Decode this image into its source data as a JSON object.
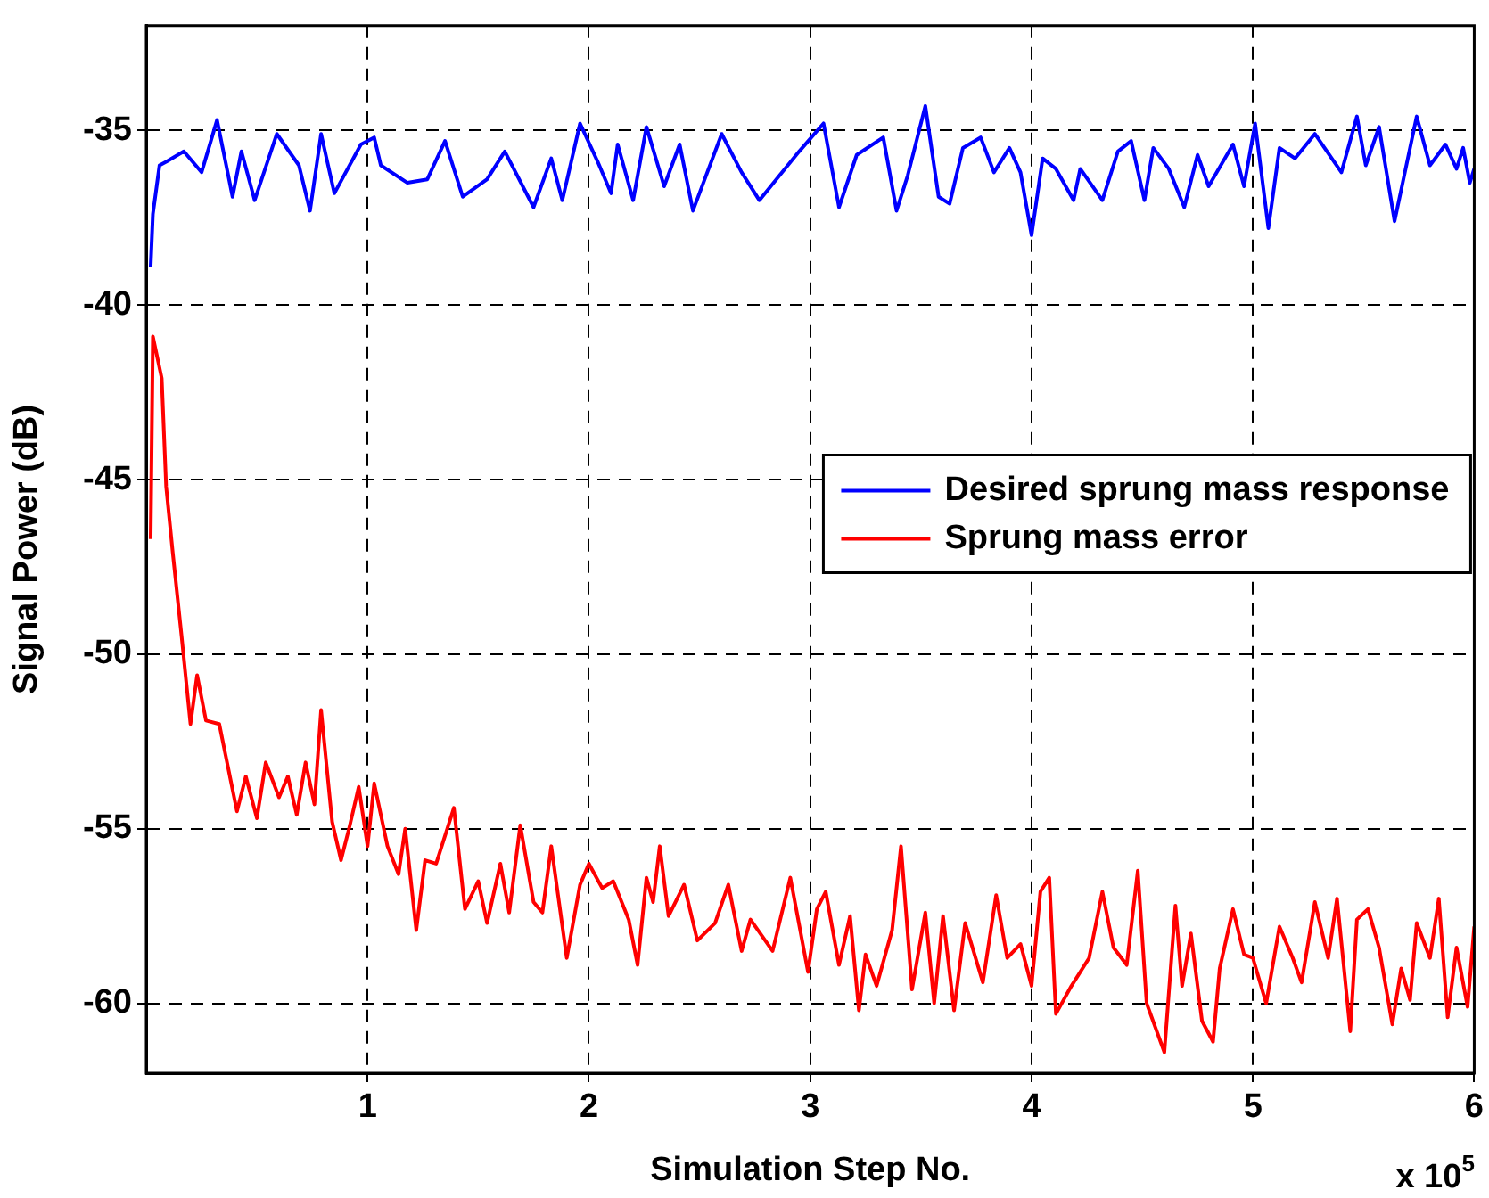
{
  "chart_data": {
    "type": "line",
    "xlabel": "Simulation Step No.",
    "ylabel": "Signal Power (dB)",
    "annotations": [
      "x 10$^{5}$"
    ],
    "xlim": [
      0,
      6
    ],
    "xticks": [
      1,
      2,
      3,
      4,
      5,
      6
    ],
    "ylim": [
      -62,
      -32
    ],
    "yticks": [
      -60,
      -55,
      -50,
      -45,
      -40,
      -35
    ],
    "grid": true,
    "legend": "right",
    "marker": "none",
    "series": [
      {
        "name": "Desired sprung mass response",
        "color": "#0000ff",
        "x": [
          0.02,
          0.03,
          0.06,
          0.09,
          0.17,
          0.25,
          0.32,
          0.39,
          0.43,
          0.49,
          0.59,
          0.69,
          0.74,
          0.79,
          0.85,
          0.97,
          1.03,
          1.06,
          1.18,
          1.27,
          1.35,
          1.43,
          1.54,
          1.62,
          1.75,
          1.83,
          1.88,
          1.96,
          2.04,
          2.1,
          2.13,
          2.2,
          2.26,
          2.34,
          2.41,
          2.47,
          2.6,
          2.69,
          2.77,
          2.95,
          3.06,
          3.13,
          3.21,
          3.33,
          3.39,
          3.44,
          3.52,
          3.58,
          3.63,
          3.69,
          3.77,
          3.83,
          3.9,
          3.95,
          4.0,
          4.05,
          4.11,
          4.19,
          4.22,
          4.32,
          4.39,
          4.45,
          4.51,
          4.55,
          4.62,
          4.69,
          4.75,
          4.8,
          4.91,
          4.96,
          5.01,
          5.07,
          5.12,
          5.19,
          5.28,
          5.4,
          5.47,
          5.51,
          5.57,
          5.64,
          5.74,
          5.8,
          5.87,
          5.92,
          5.95,
          5.98,
          6.0
        ],
        "values": [
          -38.9,
          -37.4,
          -36.0,
          -35.9,
          -35.6,
          -36.2,
          -34.7,
          -36.9,
          -35.6,
          -37.0,
          -35.1,
          -36.0,
          -37.3,
          -35.1,
          -36.8,
          -35.4,
          -35.2,
          -36.0,
          -36.5,
          -36.4,
          -35.3,
          -36.9,
          -36.4,
          -35.6,
          -37.2,
          -35.8,
          -37.0,
          -34.8,
          -35.9,
          -36.8,
          -35.4,
          -37.0,
          -34.9,
          -36.6,
          -35.4,
          -37.3,
          -35.1,
          -36.2,
          -37.0,
          -35.6,
          -34.8,
          -37.2,
          -35.7,
          -35.2,
          -37.3,
          -36.3,
          -34.3,
          -36.9,
          -37.1,
          -35.5,
          -35.2,
          -36.2,
          -35.5,
          -36.2,
          -38.0,
          -35.8,
          -36.1,
          -37.0,
          -36.1,
          -37.0,
          -35.6,
          -35.3,
          -37.0,
          -35.5,
          -36.1,
          -37.2,
          -35.7,
          -36.6,
          -35.4,
          -36.6,
          -34.8,
          -37.8,
          -35.5,
          -35.8,
          -35.1,
          -36.2,
          -34.6,
          -36.0,
          -34.9,
          -37.6,
          -34.6,
          -36.0,
          -35.4,
          -36.1,
          -35.5,
          -36.5,
          -36.1
        ]
      },
      {
        "name": "Sprung mass error",
        "color": "#ff0000",
        "x": [
          0.02,
          0.03,
          0.07,
          0.09,
          0.12,
          0.16,
          0.2,
          0.23,
          0.27,
          0.33,
          0.41,
          0.45,
          0.5,
          0.54,
          0.6,
          0.64,
          0.68,
          0.72,
          0.76,
          0.79,
          0.84,
          0.88,
          0.92,
          0.96,
          1.0,
          1.03,
          1.09,
          1.14,
          1.17,
          1.22,
          1.26,
          1.31,
          1.39,
          1.44,
          1.5,
          1.54,
          1.6,
          1.64,
          1.69,
          1.75,
          1.79,
          1.83,
          1.9,
          1.96,
          2.0,
          2.06,
          2.11,
          2.18,
          2.22,
          2.26,
          2.29,
          2.32,
          2.36,
          2.43,
          2.49,
          2.57,
          2.63,
          2.69,
          2.73,
          2.83,
          2.91,
          2.99,
          3.03,
          3.07,
          3.13,
          3.18,
          3.22,
          3.25,
          3.3,
          3.37,
          3.41,
          3.46,
          3.52,
          3.56,
          3.6,
          3.65,
          3.7,
          3.78,
          3.84,
          3.89,
          3.95,
          4.0,
          4.04,
          4.08,
          4.11,
          4.18,
          4.26,
          4.32,
          4.37,
          4.43,
          4.48,
          4.52,
          4.6,
          4.65,
          4.68,
          4.72,
          4.77,
          4.82,
          4.85,
          4.91,
          4.96,
          5.0,
          5.06,
          5.12,
          5.18,
          5.22,
          5.28,
          5.34,
          5.38,
          5.44,
          5.47,
          5.52,
          5.57,
          5.63,
          5.67,
          5.71,
          5.74,
          5.8,
          5.84,
          5.88,
          5.92,
          5.97,
          6.0
        ],
        "values": [
          -46.7,
          -40.9,
          -42.1,
          -45.2,
          -47.1,
          -49.5,
          -52.0,
          -50.6,
          -51.9,
          -52.0,
          -54.5,
          -53.5,
          -54.7,
          -53.1,
          -54.1,
          -53.5,
          -54.6,
          -53.1,
          -54.3,
          -51.6,
          -54.8,
          -55.9,
          -54.9,
          -53.8,
          -55.5,
          -53.7,
          -55.5,
          -56.3,
          -55.0,
          -57.9,
          -55.9,
          -56.0,
          -54.4,
          -57.3,
          -56.5,
          -57.7,
          -56.0,
          -57.4,
          -54.9,
          -57.1,
          -57.4,
          -55.5,
          -58.7,
          -56.6,
          -56.0,
          -56.7,
          -56.5,
          -57.6,
          -58.9,
          -56.4,
          -57.1,
          -55.5,
          -57.5,
          -56.6,
          -58.2,
          -57.7,
          -56.6,
          -58.5,
          -57.6,
          -58.5,
          -56.4,
          -59.1,
          -57.3,
          -56.8,
          -58.9,
          -57.5,
          -60.2,
          -58.6,
          -59.5,
          -57.9,
          -55.5,
          -59.6,
          -57.4,
          -60.0,
          -57.5,
          -60.2,
          -57.7,
          -59.4,
          -56.9,
          -58.7,
          -58.3,
          -59.5,
          -56.8,
          -56.4,
          -60.3,
          -59.5,
          -58.7,
          -56.8,
          -58.4,
          -58.9,
          -56.2,
          -60.0,
          -61.4,
          -57.2,
          -59.5,
          -58.0,
          -60.5,
          -61.1,
          -59.0,
          -57.3,
          -58.6,
          -58.7,
          -60.0,
          -57.8,
          -58.7,
          -59.4,
          -57.1,
          -58.7,
          -57.0,
          -60.8,
          -57.6,
          -57.3,
          -58.4,
          -60.6,
          -59.0,
          -59.9,
          -57.7,
          -58.7,
          -57.0,
          -60.4,
          -58.4,
          -60.1,
          -57.8
        ]
      }
    ]
  }
}
